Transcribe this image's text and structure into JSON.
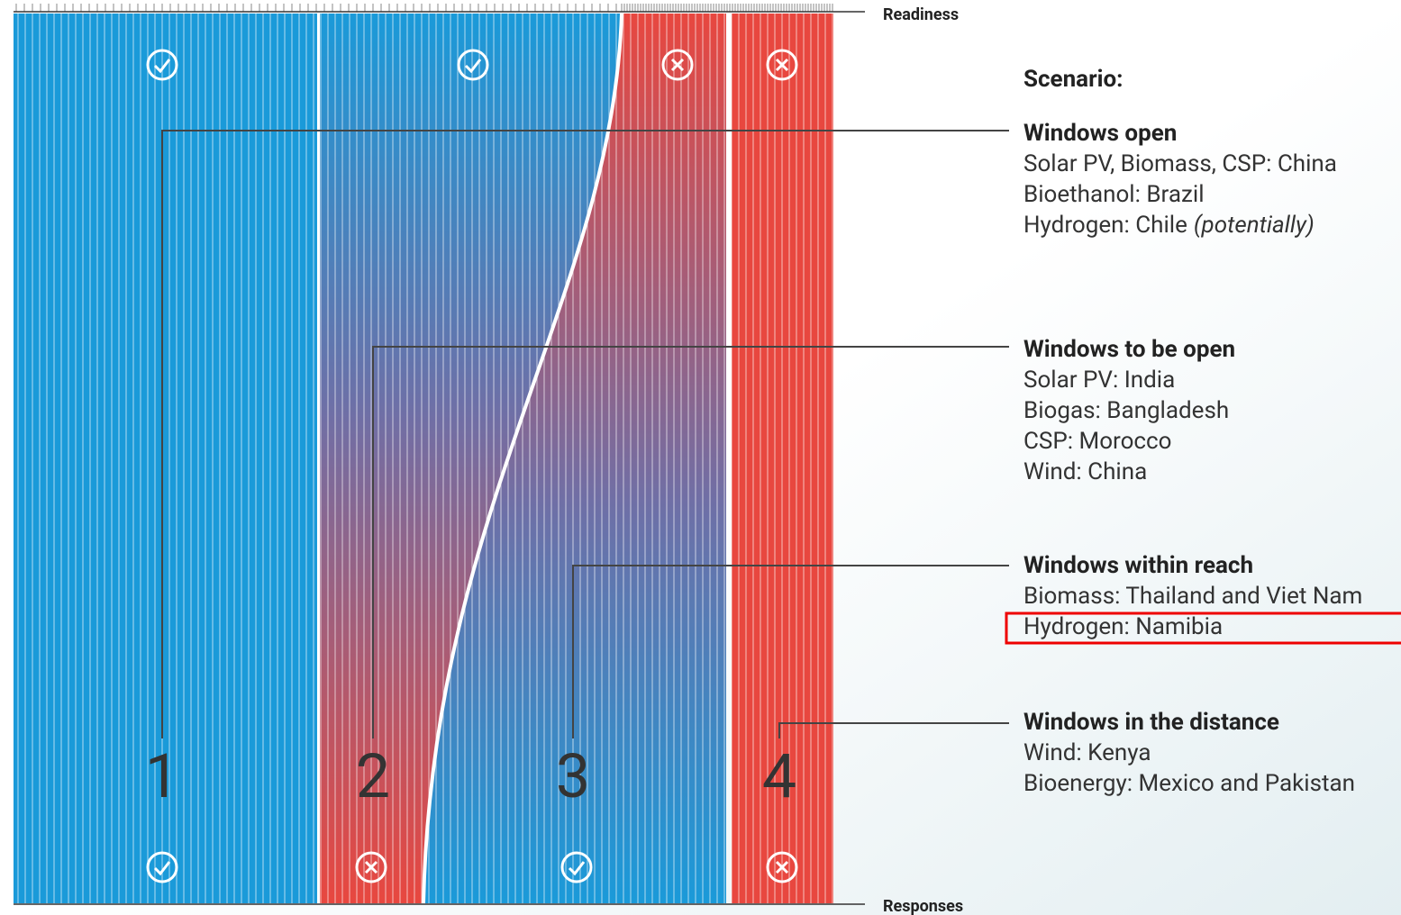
{
  "axis": {
    "top": "Readiness",
    "bottom": "Responses"
  },
  "legend_title": "Scenario:",
  "scenarios": [
    {
      "number": "1",
      "title": "Windows open",
      "lines": [
        "Solar PV, Biomass, CSP: China",
        "Bioethanol: Brazil",
        {
          "text": "Hydrogen: Chile",
          "note": "(potentially)"
        }
      ]
    },
    {
      "number": "2",
      "title": "Windows to be open",
      "lines": [
        "Solar PV: India",
        "Biogas: Bangladesh",
        "CSP: Morocco",
        "Wind: China"
      ]
    },
    {
      "number": "3",
      "title": "Windows within reach",
      "lines": [
        "Biomass: Thailand and Viet Nam",
        "Hydrogen: Namibia"
      ]
    },
    {
      "number": "4",
      "title": "Windows in the distance",
      "lines": [
        "Wind: Kenya",
        "Bioenergy: Mexico and Pakistan"
      ]
    }
  ]
}
